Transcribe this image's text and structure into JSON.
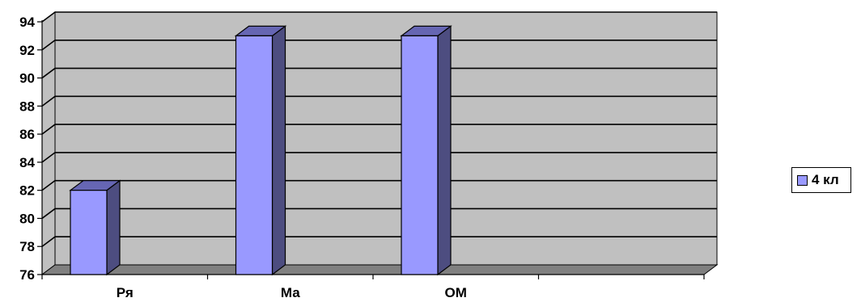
{
  "chart_data": {
    "type": "bar",
    "categories": [
      "Ря",
      "Ма",
      "ОМ",
      ""
    ],
    "series": [
      {
        "name": "4 кл",
        "values": [
          82,
          93,
          93,
          null
        ]
      }
    ],
    "ylim": [
      76,
      94
    ],
    "yticks": [
      76,
      78,
      80,
      82,
      84,
      86,
      88,
      90,
      92,
      94
    ],
    "grid": true,
    "legend": "right",
    "style": "3d-bar",
    "colors": {
      "bar_front": "#9999ff",
      "bar_side": "#4d4d80",
      "bar_top": "#6666b3",
      "wall": "#c0c0c0",
      "floor": "#808080"
    }
  },
  "legend": {
    "label": "4 кл"
  }
}
